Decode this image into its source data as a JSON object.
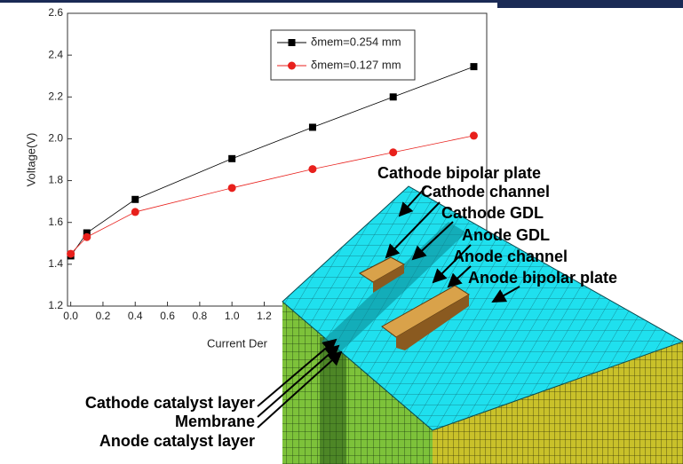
{
  "chart_data": {
    "type": "line",
    "x_label": "Current Der",
    "y_label": "Voltage(V)",
    "xlim": [
      -0.02,
      2.58
    ],
    "ylim": [
      1.2,
      2.6
    ],
    "xticks": [
      {
        "value": 0,
        "label": "0.0"
      },
      0.2,
      0.4,
      0.6,
      0.8,
      {
        "value": 1,
        "label": "1.0"
      },
      1.2
    ],
    "yticks": [
      1.2,
      1.4,
      1.6,
      1.8,
      {
        "value": 2,
        "label": "2.0"
      },
      2.2,
      2.4,
      2.6
    ],
    "x": [
      0,
      0.1,
      0.4,
      1.0,
      1.5,
      2.0,
      2.5
    ],
    "series": [
      {
        "name": "δmem=0.254 mm",
        "color": "#000000",
        "marker": "square",
        "values": [
          1.44,
          1.55,
          1.71,
          1.905,
          2.055,
          2.2,
          2.345
        ]
      },
      {
        "name": "δmem=0.127 mm",
        "color": "#e8201c",
        "marker": "circle",
        "values": [
          1.45,
          1.53,
          1.65,
          1.765,
          1.855,
          1.935,
          2.015
        ]
      }
    ]
  },
  "diagram": {
    "labels": [
      "Cathode bipolar plate",
      "Cathode channel",
      "Cathode GDL",
      "Anode GDL",
      "Anode channel",
      "Anode bipolar plate",
      "Cathode catalyst layer",
      "Membrane",
      "Anode catalyst layer"
    ]
  }
}
